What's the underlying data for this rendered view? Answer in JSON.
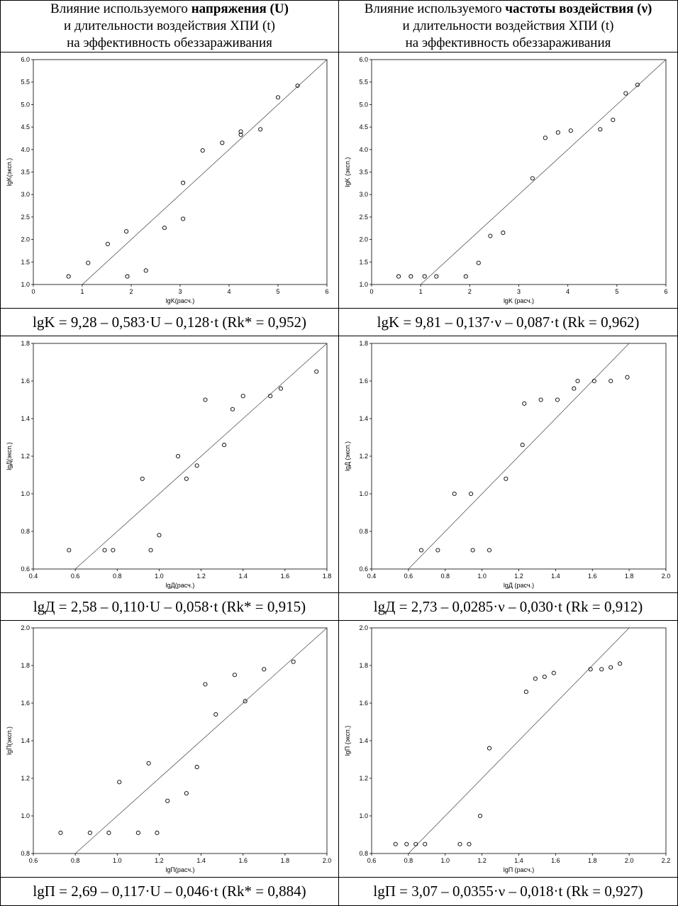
{
  "headers": {
    "left": {
      "line1_pre": "Влияние используемого ",
      "line1_bold": "напряжения (U)",
      "line2": "и длительности воздействия ХПИ (t)",
      "line3": "на эффективность обеззараживания"
    },
    "right": {
      "line1_pre": "Влияние используемого ",
      "line1_bold": "частоты воздействия (ν)",
      "line2": "и длительности воздействия ХПИ (t)",
      "line3": "на эффективность обеззараживания"
    }
  },
  "equations": {
    "r1_left": "lgK = 9,28 – 0,583·U – 0,128·t (Rk* = 0,952)",
    "r1_right": "lgK = 9,81 – 0,137·ν – 0,087·t (Rk = 0,962)",
    "r2_left": "lgД = 2,58 – 0,110·U – 0,058·t (Rk* = 0,915)",
    "r2_right": "lgД = 2,73 – 0,0285·ν – 0,030·t (Rk = 0,912)",
    "r3_left": "lgП = 2,69 – 0,117·U – 0,046·t (Rk* = 0,884)",
    "r3_right": "lgП = 3,07 – 0,0355·ν – 0,018·t (Rk = 0,927)"
  },
  "chart_data": [
    {
      "id": "r1_left",
      "type": "scatter",
      "xlabel": "lgK(расч.)",
      "ylabel": "lgK(эксп.)",
      "xlim": [
        0,
        6
      ],
      "ylim": [
        1.0,
        6.0
      ],
      "xticks": [
        0,
        1,
        2,
        3,
        4,
        5,
        6
      ],
      "xticklabels": [
        "0",
        "1",
        "2",
        "3",
        "4",
        "5",
        "6"
      ],
      "yticks": [
        1.0,
        1.5,
        2.0,
        2.5,
        3.0,
        3.5,
        4.0,
        4.5,
        5.0,
        5.5,
        6.0
      ],
      "yticklabels": [
        "1.0",
        "1.5",
        "2.0",
        "2.5",
        "3.0",
        "3.5",
        "4.0",
        "4.5",
        "5.0",
        "5.5",
        "6.0"
      ],
      "points": [
        [
          0.72,
          1.18
        ],
        [
          1.12,
          1.48
        ],
        [
          1.52,
          1.9
        ],
        [
          1.9,
          2.18
        ],
        [
          1.92,
          1.18
        ],
        [
          2.3,
          1.31
        ],
        [
          2.68,
          2.26
        ],
        [
          3.06,
          3.26
        ],
        [
          3.06,
          2.46
        ],
        [
          3.46,
          3.98
        ],
        [
          3.86,
          4.15
        ],
        [
          4.24,
          4.4
        ],
        [
          4.24,
          4.33
        ],
        [
          4.64,
          4.45
        ],
        [
          5.0,
          5.16
        ],
        [
          5.4,
          5.42
        ]
      ],
      "fit_line": [
        [
          1.0,
          1.0
        ],
        [
          6.0,
          6.0
        ]
      ]
    },
    {
      "id": "r1_right",
      "type": "scatter",
      "xlabel": "lgK (расч.)",
      "ylabel": "lgK (эксп.)",
      "xlim": [
        0,
        6
      ],
      "ylim": [
        1.0,
        6.0
      ],
      "xticks": [
        0,
        1,
        2,
        3,
        4,
        5,
        6
      ],
      "xticklabels": [
        "0",
        "1",
        "2",
        "3",
        "4",
        "5",
        "6"
      ],
      "yticks": [
        1.0,
        1.5,
        2.0,
        2.5,
        3.0,
        3.5,
        4.0,
        4.5,
        5.0,
        5.5,
        6.0
      ],
      "yticklabels": [
        "1.0",
        "1.5",
        "2.0",
        "2.5",
        "3.0",
        "3.5",
        "4.0",
        "4.5",
        "5.0",
        "5.5",
        "6.0"
      ],
      "points": [
        [
          0.55,
          1.18
        ],
        [
          0.8,
          1.18
        ],
        [
          1.08,
          1.18
        ],
        [
          1.32,
          1.18
        ],
        [
          1.92,
          1.18
        ],
        [
          2.18,
          1.48
        ],
        [
          2.42,
          2.08
        ],
        [
          2.68,
          2.15
        ],
        [
          3.28,
          3.36
        ],
        [
          3.54,
          4.26
        ],
        [
          3.8,
          4.38
        ],
        [
          4.06,
          4.42
        ],
        [
          4.66,
          4.45
        ],
        [
          4.92,
          4.66
        ],
        [
          5.18,
          5.25
        ],
        [
          5.42,
          5.44
        ]
      ],
      "fit_line": [
        [
          1.0,
          1.0
        ],
        [
          6.0,
          6.0
        ]
      ]
    },
    {
      "id": "r2_left",
      "type": "scatter",
      "xlabel": "lgД(расч.)",
      "ylabel": "lgД(эксп.)",
      "xlim": [
        0.4,
        1.8
      ],
      "ylim": [
        0.6,
        1.8
      ],
      "xticks": [
        0.4,
        0.6,
        0.8,
        1.0,
        1.2,
        1.4,
        1.6,
        1.8
      ],
      "xticklabels": [
        "0.4",
        "0.6",
        "0.8",
        "1.0",
        "1.2",
        "1.4",
        "1.6",
        "1.8"
      ],
      "yticks": [
        0.6,
        0.8,
        1.0,
        1.2,
        1.4,
        1.6,
        1.8
      ],
      "yticklabels": [
        "0.6",
        "0.8",
        "1.0",
        "1.2",
        "1.4",
        "1.6",
        "1.8"
      ],
      "points": [
        [
          0.57,
          0.7
        ],
        [
          0.74,
          0.7
        ],
        [
          0.78,
          0.7
        ],
        [
          0.92,
          1.08
        ],
        [
          0.96,
          0.7
        ],
        [
          1.0,
          0.78
        ],
        [
          1.09,
          1.2
        ],
        [
          1.13,
          1.08
        ],
        [
          1.18,
          1.15
        ],
        [
          1.22,
          1.5
        ],
        [
          1.31,
          1.26
        ],
        [
          1.35,
          1.45
        ],
        [
          1.4,
          1.52
        ],
        [
          1.53,
          1.52
        ],
        [
          1.58,
          1.56
        ],
        [
          1.75,
          1.65
        ]
      ],
      "fit_line": [
        [
          0.6,
          0.6
        ],
        [
          1.8,
          1.8
        ]
      ]
    },
    {
      "id": "r2_right",
      "type": "scatter",
      "xlabel": "lgД (расч.)",
      "ylabel": "lgД (эксп.)",
      "xlim": [
        0.4,
        2.0
      ],
      "ylim": [
        0.6,
        1.8
      ],
      "xticks": [
        0.4,
        0.6,
        0.8,
        1.0,
        1.2,
        1.4,
        1.6,
        1.8,
        2.0
      ],
      "xticklabels": [
        "0.4",
        "0.6",
        "0.8",
        "1.0",
        "1.2",
        "1.4",
        "1.6",
        "1.8",
        "2.0"
      ],
      "yticks": [
        0.6,
        0.8,
        1.0,
        1.2,
        1.4,
        1.6,
        1.8
      ],
      "yticklabels": [
        "0.6",
        "0.8",
        "1.0",
        "1.2",
        "1.4",
        "1.6",
        "1.8"
      ],
      "points": [
        [
          0.67,
          0.7
        ],
        [
          0.76,
          0.7
        ],
        [
          0.85,
          1.0
        ],
        [
          0.94,
          1.0
        ],
        [
          0.95,
          0.7
        ],
        [
          1.04,
          0.7
        ],
        [
          1.13,
          1.08
        ],
        [
          1.22,
          1.26
        ],
        [
          1.23,
          1.48
        ],
        [
          1.32,
          1.5
        ],
        [
          1.41,
          1.5
        ],
        [
          1.5,
          1.56
        ],
        [
          1.52,
          1.6
        ],
        [
          1.61,
          1.6
        ],
        [
          1.7,
          1.6
        ],
        [
          1.79,
          1.62
        ]
      ],
      "fit_line": [
        [
          0.6,
          0.6
        ],
        [
          1.8,
          1.8
        ]
      ]
    },
    {
      "id": "r3_left",
      "type": "scatter",
      "xlabel": "lgП(расч.)",
      "ylabel": "lgП(эксп.)",
      "xlim": [
        0.6,
        2.0
      ],
      "ylim": [
        0.8,
        2.0
      ],
      "xticks": [
        0.6,
        0.8,
        1.0,
        1.2,
        1.4,
        1.6,
        1.8,
        2.0
      ],
      "xticklabels": [
        "0.6",
        "0.8",
        "1.0",
        "1.2",
        "1.4",
        "1.6",
        "1.8",
        "2.0"
      ],
      "yticks": [
        0.8,
        1.0,
        1.2,
        1.4,
        1.6,
        1.8,
        2.0
      ],
      "yticklabels": [
        "0.8",
        "1.0",
        "1.2",
        "1.4",
        "1.6",
        "1.8",
        "2.0"
      ],
      "points": [
        [
          0.73,
          0.91
        ],
        [
          0.87,
          0.91
        ],
        [
          0.96,
          0.91
        ],
        [
          1.01,
          1.18
        ],
        [
          1.1,
          0.91
        ],
        [
          1.15,
          1.28
        ],
        [
          1.19,
          0.91
        ],
        [
          1.24,
          1.08
        ],
        [
          1.33,
          1.12
        ],
        [
          1.38,
          1.26
        ],
        [
          1.42,
          1.7
        ],
        [
          1.47,
          1.54
        ],
        [
          1.56,
          1.75
        ],
        [
          1.61,
          1.61
        ],
        [
          1.7,
          1.78
        ],
        [
          1.84,
          1.82
        ]
      ],
      "fit_line": [
        [
          0.8,
          0.8
        ],
        [
          2.0,
          2.0
        ]
      ]
    },
    {
      "id": "r3_right",
      "type": "scatter",
      "xlabel": "lgП (расч.)",
      "ylabel": "lgП (эксп.)",
      "xlim": [
        0.6,
        2.2
      ],
      "ylim": [
        0.8,
        2.0
      ],
      "xticks": [
        0.6,
        0.8,
        1.0,
        1.2,
        1.4,
        1.6,
        1.8,
        2.0,
        2.2
      ],
      "xticklabels": [
        "0.6",
        "0.8",
        "1.0",
        "1.2",
        "1.4",
        "1.6",
        "1.8",
        "2.0",
        "2.2"
      ],
      "yticks": [
        0.8,
        1.0,
        1.2,
        1.4,
        1.6,
        1.8,
        2.0
      ],
      "yticklabels": [
        "0.8",
        "1.0",
        "1.2",
        "1.4",
        "1.6",
        "1.8",
        "2.0"
      ],
      "points": [
        [
          0.73,
          0.85
        ],
        [
          0.79,
          0.85
        ],
        [
          0.84,
          0.85
        ],
        [
          0.89,
          0.85
        ],
        [
          1.08,
          0.85
        ],
        [
          1.13,
          0.85
        ],
        [
          1.19,
          1.0
        ],
        [
          1.24,
          1.36
        ],
        [
          1.44,
          1.66
        ],
        [
          1.49,
          1.73
        ],
        [
          1.54,
          1.74
        ],
        [
          1.59,
          1.76
        ],
        [
          1.79,
          1.78
        ],
        [
          1.85,
          1.78
        ],
        [
          1.9,
          1.79
        ],
        [
          1.95,
          1.81
        ]
      ],
      "fit_line": [
        [
          0.8,
          0.8
        ],
        [
          2.0,
          2.0
        ]
      ]
    }
  ]
}
